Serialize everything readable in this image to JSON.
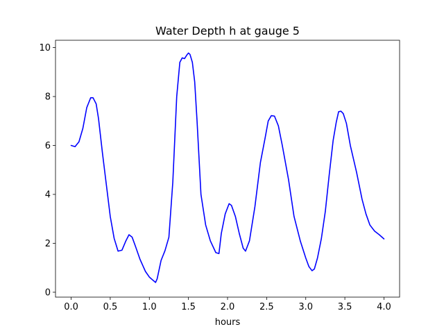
{
  "chart_data": {
    "type": "line",
    "title": "Water Depth h at gauge 5",
    "xlabel": "hours",
    "ylabel": "",
    "xlim": [
      -0.2,
      4.2
    ],
    "ylim": [
      -0.2,
      10.3
    ],
    "xticks": [
      0.0,
      0.5,
      1.0,
      1.5,
      2.0,
      2.5,
      3.0,
      3.5,
      4.0
    ],
    "xtick_labels": [
      "0.0",
      "0.5",
      "1.0",
      "1.5",
      "2.0",
      "2.5",
      "3.0",
      "3.5",
      "4.0"
    ],
    "yticks": [
      0,
      2,
      4,
      6,
      8,
      10
    ],
    "ytick_labels": [
      "0",
      "2",
      "4",
      "6",
      "8",
      "10"
    ],
    "grid": false,
    "series": [
      {
        "name": "",
        "color": "#0000ff",
        "x": [
          0.0,
          0.05,
          0.1,
          0.15,
          0.2,
          0.25,
          0.28,
          0.32,
          0.35,
          0.4,
          0.45,
          0.5,
          0.55,
          0.6,
          0.65,
          0.7,
          0.74,
          0.78,
          0.82,
          0.88,
          0.95,
          1.0,
          1.05,
          1.08,
          1.1,
          1.15,
          1.2,
          1.25,
          1.3,
          1.35,
          1.39,
          1.42,
          1.45,
          1.48,
          1.5,
          1.52,
          1.55,
          1.58,
          1.61,
          1.66,
          1.72,
          1.78,
          1.85,
          1.89,
          1.92,
          1.97,
          2.02,
          2.05,
          2.1,
          2.15,
          2.2,
          2.23,
          2.28,
          2.35,
          2.42,
          2.48,
          2.52,
          2.56,
          2.6,
          2.65,
          2.7,
          2.78,
          2.85,
          2.93,
          3.0,
          3.04,
          3.08,
          3.11,
          3.15,
          3.2,
          3.25,
          3.3,
          3.35,
          3.39,
          3.42,
          3.45,
          3.48,
          3.52,
          3.57,
          3.65,
          3.72,
          3.77,
          3.82,
          3.88,
          3.94,
          4.0
        ],
        "y": [
          6.0,
          5.95,
          6.15,
          6.7,
          7.55,
          7.95,
          7.95,
          7.7,
          7.1,
          5.7,
          4.4,
          3.1,
          2.2,
          1.68,
          1.72,
          2.1,
          2.35,
          2.25,
          1.9,
          1.35,
          0.85,
          0.62,
          0.48,
          0.4,
          0.55,
          1.3,
          1.7,
          2.25,
          4.5,
          8.0,
          9.4,
          9.58,
          9.55,
          9.7,
          9.78,
          9.72,
          9.4,
          8.6,
          7.0,
          4.0,
          2.75,
          2.1,
          1.62,
          1.58,
          2.4,
          3.2,
          3.62,
          3.55,
          3.1,
          2.4,
          1.8,
          1.68,
          2.1,
          3.5,
          5.3,
          6.3,
          7.0,
          7.22,
          7.2,
          6.8,
          6.0,
          4.6,
          3.1,
          2.1,
          1.4,
          1.05,
          0.88,
          0.95,
          1.4,
          2.2,
          3.3,
          4.8,
          6.2,
          6.95,
          7.38,
          7.4,
          7.3,
          6.9,
          6.0,
          4.9,
          3.8,
          3.2,
          2.75,
          2.5,
          2.35,
          2.18
        ]
      }
    ]
  }
}
